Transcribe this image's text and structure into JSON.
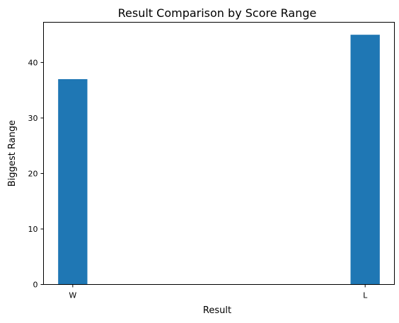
{
  "chart_data": {
    "type": "bar",
    "title": "Result Comparison by Score Range",
    "xlabel": "Result",
    "ylabel": "Biggest Range",
    "categories": [
      "W",
      "L"
    ],
    "values": [
      37,
      45
    ],
    "ylim": [
      0,
      47.25
    ],
    "yticks": [
      0,
      10,
      20,
      30,
      40
    ],
    "grid": false,
    "bar_color": "#1f77b4"
  }
}
